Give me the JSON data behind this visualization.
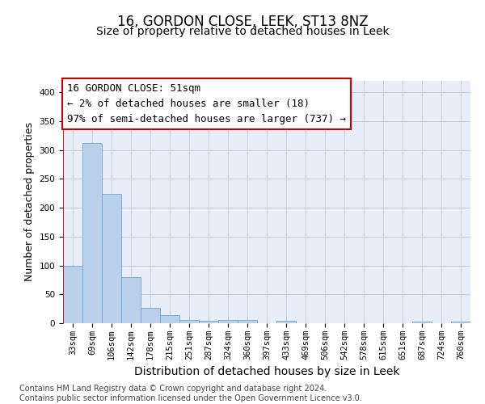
{
  "title": "16, GORDON CLOSE, LEEK, ST13 8NZ",
  "subtitle": "Size of property relative to detached houses in Leek",
  "xlabel": "Distribution of detached houses by size in Leek",
  "ylabel": "Number of detached properties",
  "categories": [
    "33sqm",
    "69sqm",
    "106sqm",
    "142sqm",
    "178sqm",
    "215sqm",
    "251sqm",
    "287sqm",
    "324sqm",
    "360sqm",
    "397sqm",
    "433sqm",
    "469sqm",
    "506sqm",
    "542sqm",
    "578sqm",
    "615sqm",
    "651sqm",
    "687sqm",
    "724sqm",
    "760sqm"
  ],
  "values": [
    99,
    312,
    224,
    80,
    26,
    14,
    5,
    4,
    5,
    5,
    0,
    4,
    0,
    0,
    0,
    0,
    0,
    0,
    3,
    0,
    3
  ],
  "bar_color": "#b8d0ea",
  "bar_edge_color": "#7aafd4",
  "annotation_line1": "16 GORDON CLOSE: 51sqm",
  "annotation_line2": "← 2% of detached houses are smaller (18)",
  "annotation_line3": "97% of semi-detached houses are larger (737) →",
  "ylim": [
    0,
    420
  ],
  "yticks": [
    0,
    50,
    100,
    150,
    200,
    250,
    300,
    350,
    400
  ],
  "footer_text": "Contains HM Land Registry data © Crown copyright and database right 2024.\nContains public sector information licensed under the Open Government Licence v3.0.",
  "background_color": "#e8eef8",
  "grid_color": "#c5cfe0",
  "title_fontsize": 12,
  "subtitle_fontsize": 10,
  "xlabel_fontsize": 10,
  "ylabel_fontsize": 9,
  "tick_fontsize": 7.5,
  "footer_fontsize": 7,
  "annotation_fontsize": 9
}
